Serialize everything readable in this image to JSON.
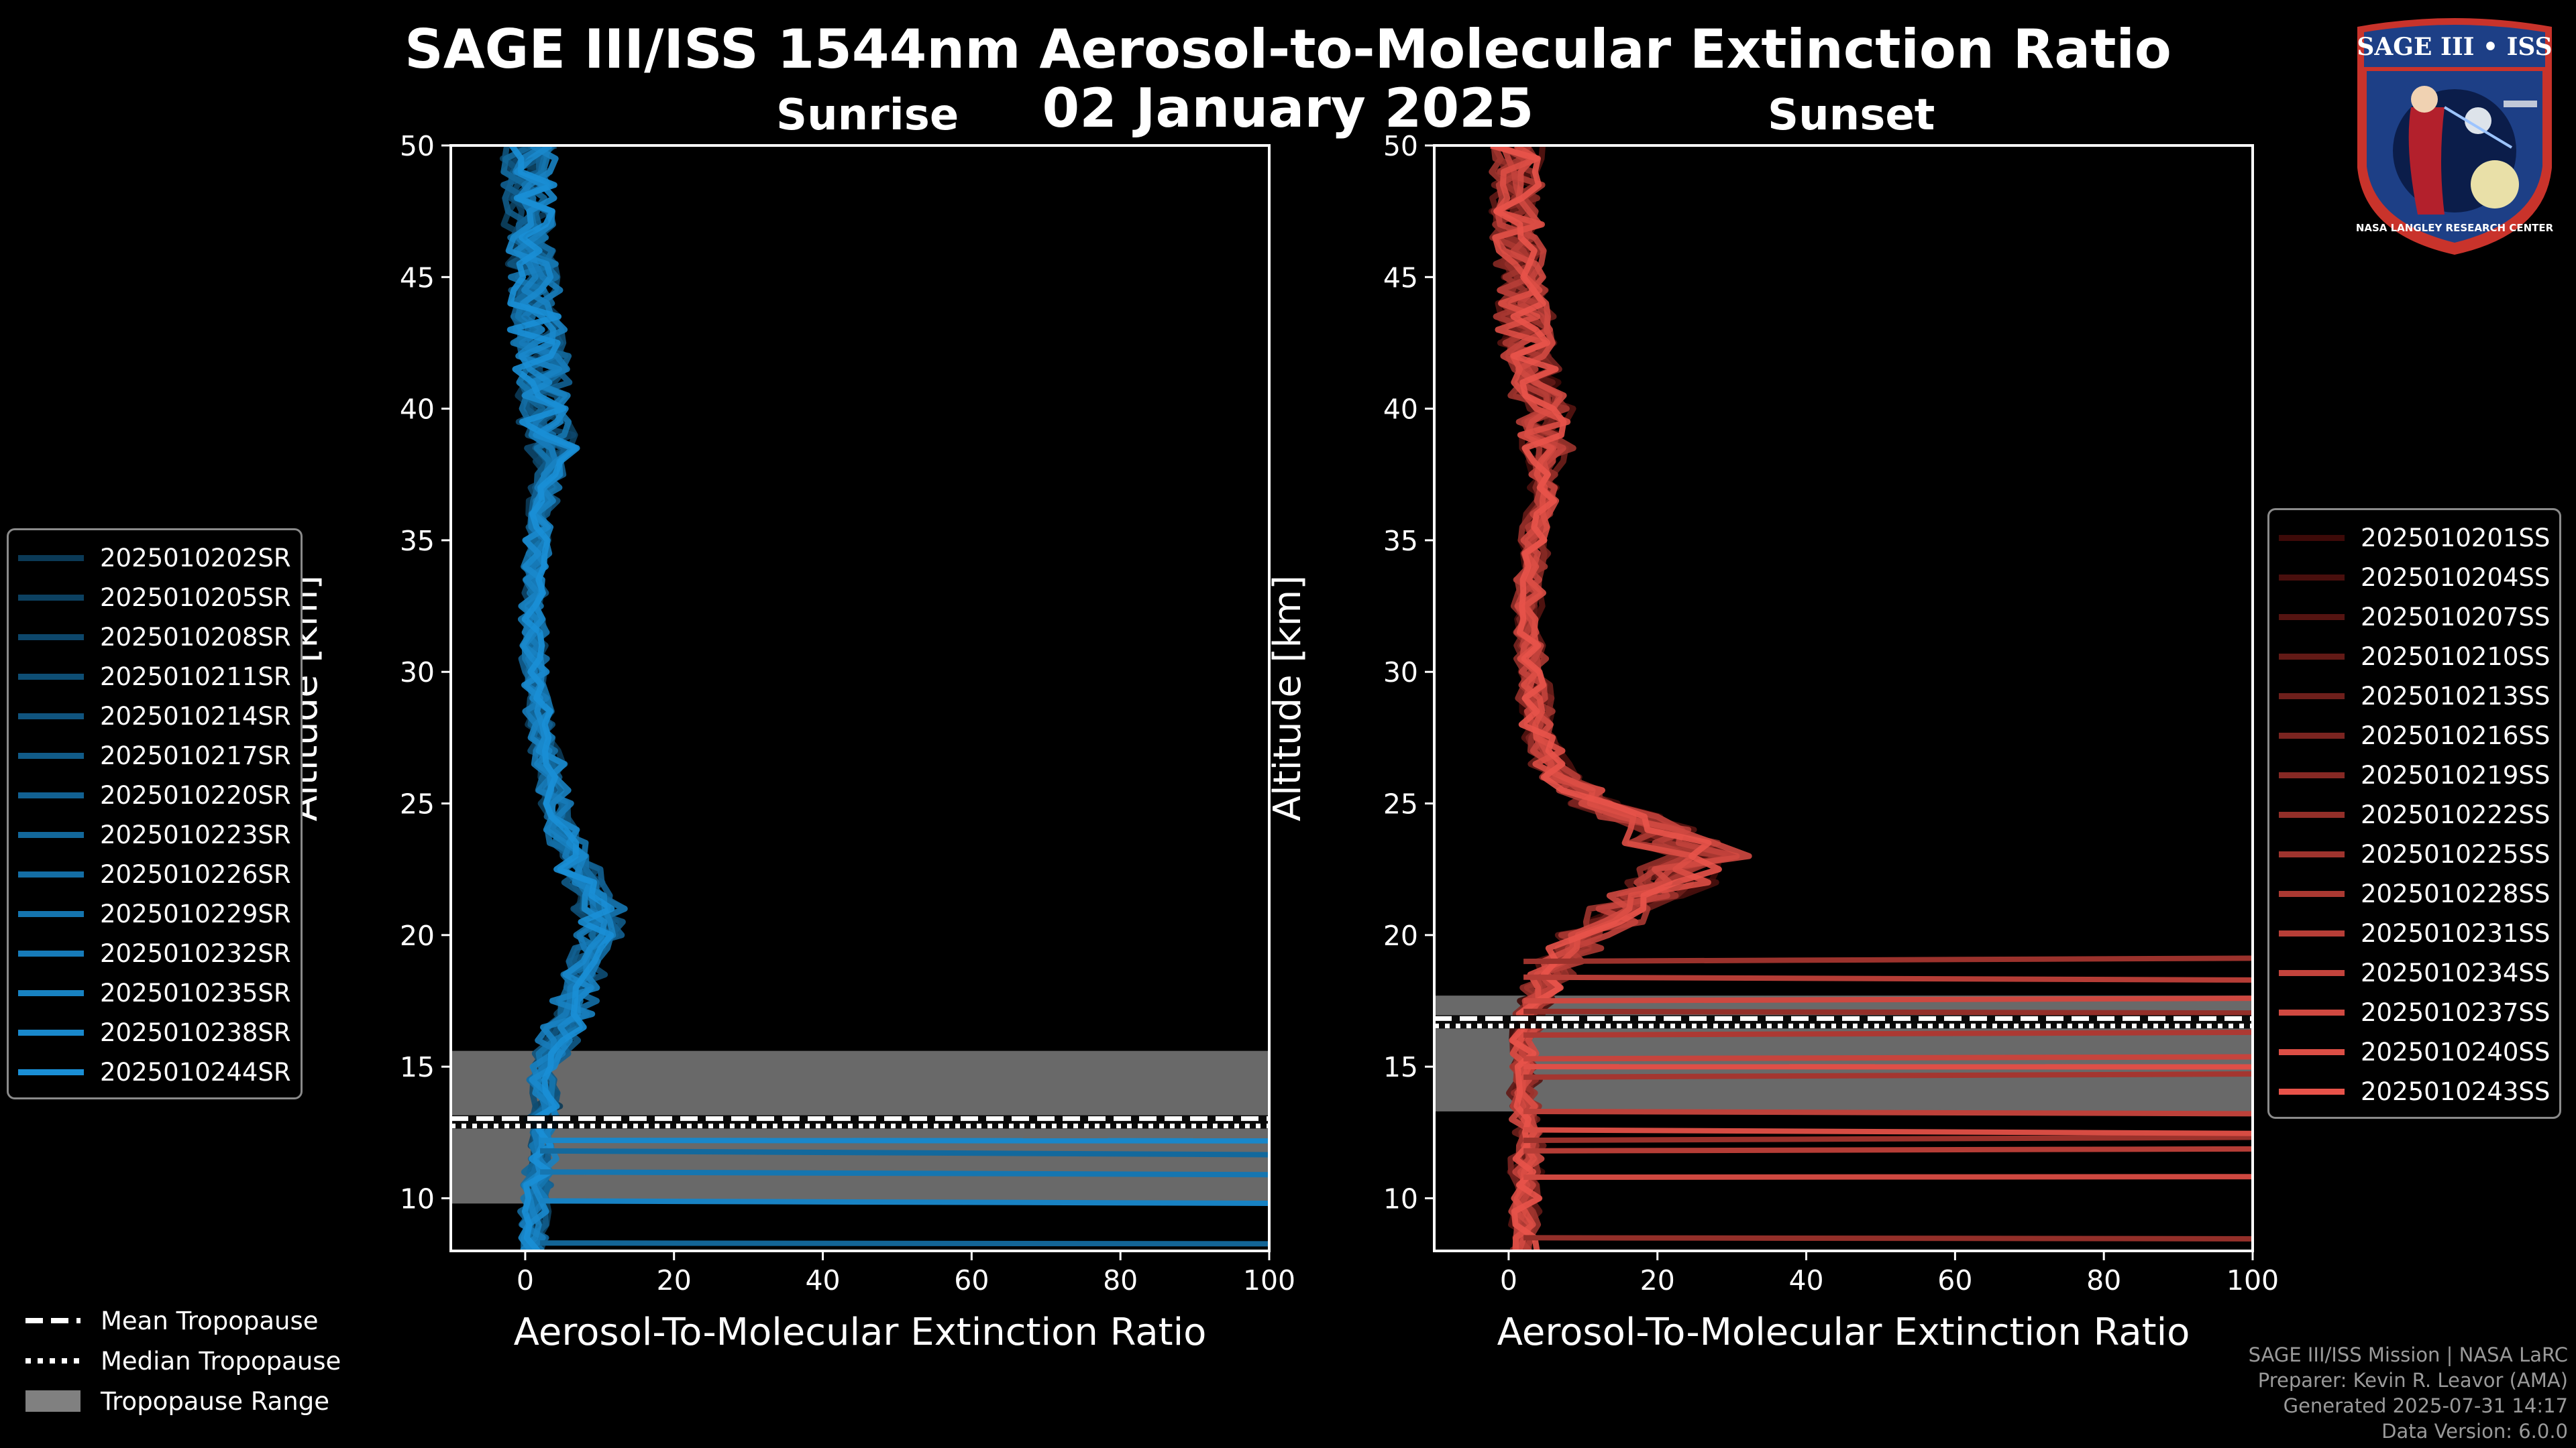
{
  "figure": {
    "title": "SAGE III/ISS 1544nm Aerosol-to-Molecular Extinction Ratio",
    "date": "02 January 2025"
  },
  "footer": {
    "line1": "SAGE III/ISS Mission | NASA LaRC",
    "line2": "Preparer: Kevin R. Leavor (AMA)",
    "line3": "Generated 2025-07-31 14:17",
    "line4": "Data Version: 6.0.0"
  },
  "badge": {
    "top_text": "SAGE III • ISS",
    "bottom_text": "NASA LANGLEY RESEARCH CENTER"
  },
  "tropopause_legend": [
    {
      "label": "Mean Tropopause",
      "style": "dashed"
    },
    {
      "label": "Median Tropopause",
      "style": "dotted"
    },
    {
      "label": "Tropopause Range",
      "style": "patch"
    }
  ],
  "chart_data": [
    {
      "type": "line",
      "title": "Sunrise",
      "xlabel": "Aerosol-To-Molecular Extinction Ratio",
      "ylabel": "Altitude [km]",
      "xlim": [
        -10,
        100
      ],
      "ylim": [
        8,
        50
      ],
      "xticks": [
        "0",
        "20",
        "40",
        "60",
        "80",
        "100"
      ],
      "yticks": [
        "10",
        "15",
        "20",
        "25",
        "30",
        "35",
        "40",
        "45",
        "50"
      ],
      "color": "#1a8fd6",
      "tropopause": {
        "mean": 12.9,
        "median": 12.9,
        "range": [
          9.8,
          15.6
        ]
      },
      "legend": [
        "2025010202SR",
        "2025010205SR",
        "2025010208SR",
        "2025010211SR",
        "2025010214SR",
        "2025010217SR",
        "2025010220SR",
        "2025010223SR",
        "2025010226SR",
        "2025010229SR",
        "2025010232SR",
        "2025010235SR",
        "2025010238SR",
        "2025010244SR"
      ],
      "series_color_ramp": [
        "#0b3a57",
        "#1a8fd6"
      ],
      "profile_median": {
        "alt": [
          8,
          9,
          10,
          11,
          12,
          13,
          14,
          15,
          16,
          17,
          18,
          19,
          20,
          21,
          22,
          23,
          24,
          25,
          26,
          27,
          28,
          29,
          30,
          31,
          32,
          33,
          34,
          35,
          36,
          37,
          38,
          39,
          40,
          41,
          42,
          43,
          44,
          45,
          46,
          47,
          48,
          49,
          50
        ],
        "ratio": [
          1,
          1.2,
          1.5,
          2,
          2.2,
          2.4,
          2.5,
          3,
          4.5,
          6,
          7,
          8.5,
          10,
          10,
          8.5,
          6.5,
          5,
          4,
          3.2,
          2.6,
          2,
          1.6,
          1.3,
          1.2,
          1.2,
          1.3,
          1.5,
          1.8,
          2.3,
          2.8,
          3.2,
          3.3,
          3.2,
          2.8,
          2.2,
          1.8,
          1.4,
          1.0,
          0.8,
          0.6,
          0.5,
          0.5,
          0.6
        ]
      },
      "horizontal_spikes_km": [
        8.3,
        9.9,
        11.0,
        11.8,
        12.2
      ]
    },
    {
      "type": "line",
      "title": "Sunset",
      "xlabel": "Aerosol-To-Molecular Extinction Ratio",
      "ylabel": "Altitude [km]",
      "xlim": [
        -10,
        100
      ],
      "ylim": [
        8,
        50
      ],
      "xticks": [
        "0",
        "20",
        "40",
        "60",
        "80",
        "100"
      ],
      "yticks": [
        "10",
        "15",
        "20",
        "25",
        "30",
        "35",
        "40",
        "45",
        "50"
      ],
      "color": "#e8534a",
      "tropopause": {
        "mean": 16.7,
        "median": 16.7,
        "range": [
          13.3,
          17.7
        ]
      },
      "legend": [
        "2025010201SS",
        "2025010204SS",
        "2025010207SS",
        "2025010210SS",
        "2025010213SS",
        "2025010216SS",
        "2025010219SS",
        "2025010222SS",
        "2025010225SS",
        "2025010228SS",
        "2025010231SS",
        "2025010234SS",
        "2025010237SS",
        "2025010240SS",
        "2025010243SS"
      ],
      "series_color_ramp": [
        "#3d0a08",
        "#e8534a"
      ],
      "profile_median": {
        "alt": [
          8,
          9,
          10,
          11,
          12,
          13,
          14,
          15,
          16,
          17,
          18,
          19,
          20,
          21,
          22,
          23,
          24,
          25,
          26,
          27,
          28,
          29,
          30,
          31,
          32,
          33,
          34,
          35,
          36,
          37,
          38,
          39,
          40,
          41,
          42,
          43,
          44,
          45,
          46,
          47,
          48,
          49,
          50
        ],
        "ratio": [
          2,
          2.2,
          2.4,
          2.5,
          2.5,
          2.4,
          2.2,
          2,
          2.2,
          3,
          4.5,
          7,
          11,
          16,
          22,
          25,
          20,
          12,
          7,
          5,
          4,
          3.5,
          3,
          2.8,
          2.8,
          3,
          3.2,
          3.5,
          4,
          4.5,
          5,
          5,
          4.5,
          3.8,
          3,
          2.5,
          2,
          1.6,
          1.3,
          1.1,
          1.0,
          1.0,
          1.0
        ]
      },
      "horizontal_spikes_km": [
        8.5,
        10.8,
        11.8,
        12.2,
        12.6,
        13.3,
        14.6,
        15.0,
        15.3,
        16.2,
        17.1,
        17.5,
        18.4,
        19.0
      ]
    }
  ]
}
